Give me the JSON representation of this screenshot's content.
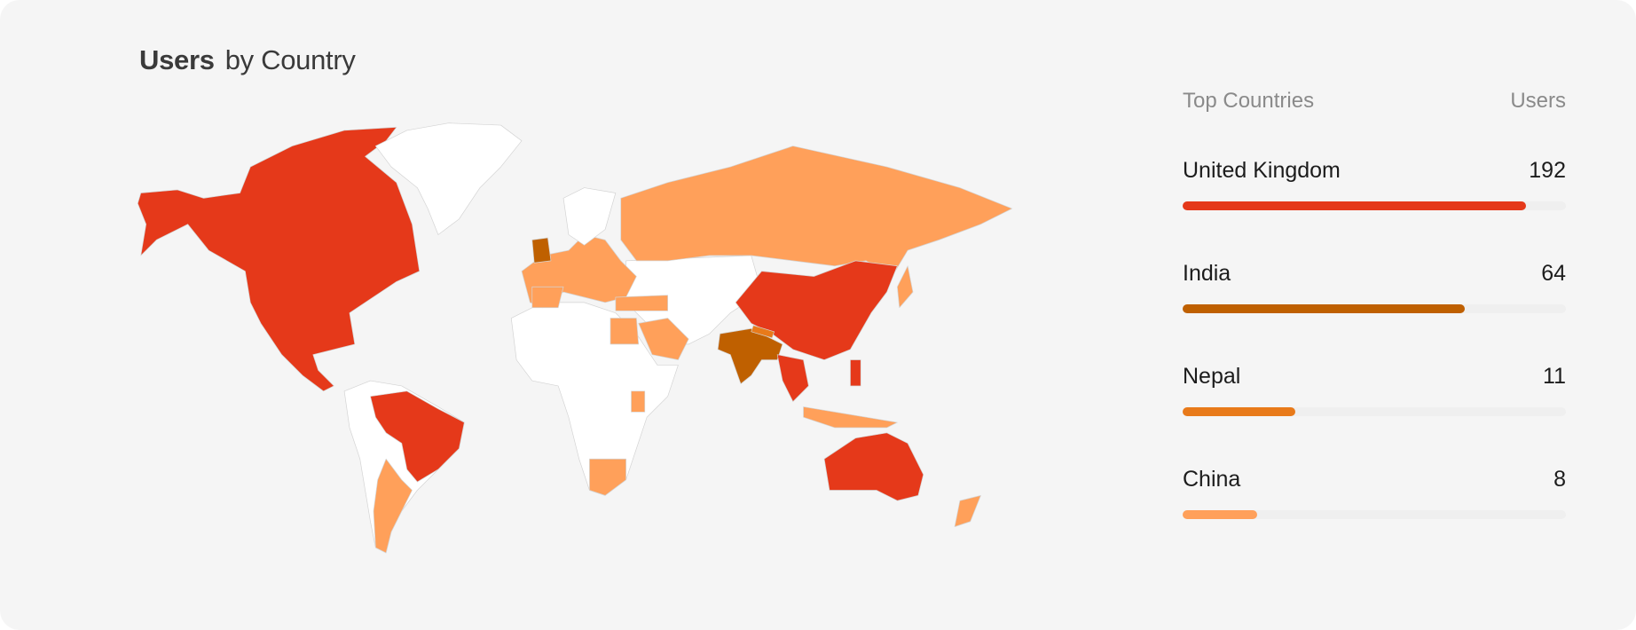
{
  "title": {
    "bold": "Users",
    "rest": "by Country"
  },
  "colors": {
    "background": "#f5f5f5",
    "no_data": "#ffffff",
    "high": "#e5391a",
    "top": "#bf6000",
    "mid": "#e87a1a",
    "low": "#ffa05a"
  },
  "panel": {
    "header_label": "Top Countries",
    "header_value": "Users",
    "rows": [
      {
        "country": "United Kingdom",
        "users": "192",
        "bar_fraction": 0.895,
        "color": "#e5391a"
      },
      {
        "country": "India",
        "users": "64",
        "bar_fraction": 0.735,
        "color": "#bf6000"
      },
      {
        "country": "Nepal",
        "users": "11",
        "bar_fraction": 0.295,
        "color": "#e87a1a"
      },
      {
        "country": "China",
        "users": "8",
        "bar_fraction": 0.195,
        "color": "#ffa05a"
      }
    ]
  }
}
